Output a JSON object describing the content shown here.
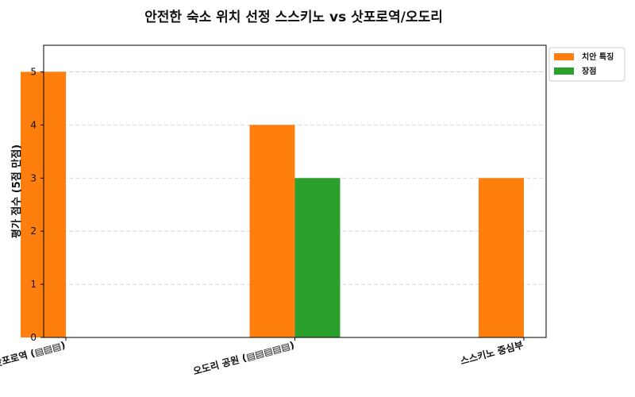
{
  "chart_data": {
    "type": "bar",
    "title": "안전한 숙소 위치 선정 스스키노 vs 삿포로역/오도리",
    "xlabel": "",
    "ylabel": "평가 점수 (5점 만점)",
    "categories": [
      "삿포로역 (▤▤▤)",
      "오도리 공원 (▤▤▤▤▤)",
      "스스키노 중심부"
    ],
    "series": [
      {
        "name": "치안 특징",
        "color": "#ff7f0e",
        "values": [
          5,
          4,
          3
        ]
      },
      {
        "name": "장점",
        "color": "#2ca02c",
        "values": [
          null,
          3,
          null
        ]
      }
    ],
    "ylim": [
      0,
      5.5
    ],
    "yticks": [
      0,
      1,
      2,
      3,
      4,
      5
    ],
    "grid": true,
    "legend_position": "outside-top-right"
  }
}
